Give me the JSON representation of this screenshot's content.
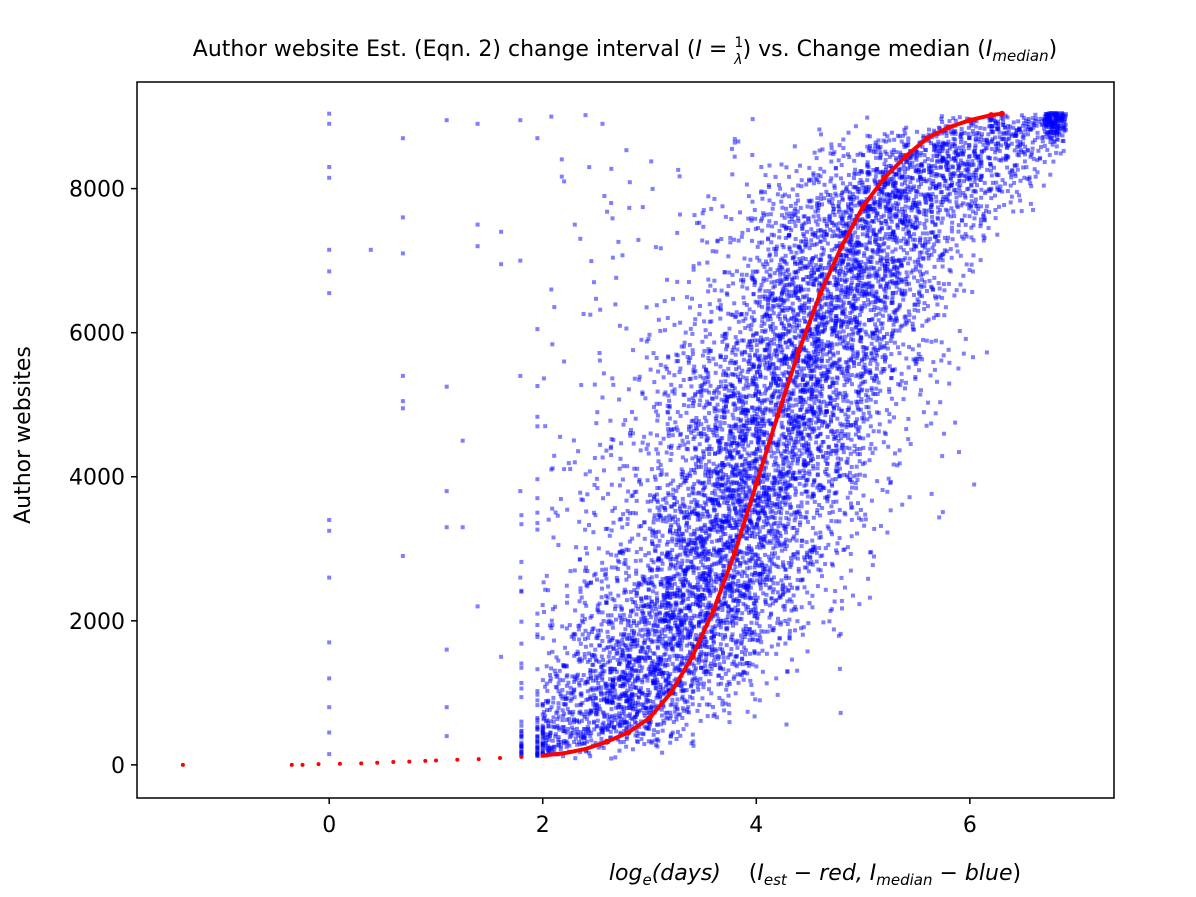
{
  "chart_data": {
    "type": "scatter",
    "title": "Author website Est. (Eqn. 2) change interval (I = 1/λ) vs. Change median (I_median)",
    "title_parts": {
      "prefix": "Author website Est. (Eqn. 2) change interval (",
      "I": "I",
      "eq": " = ",
      "frac_num": "1",
      "frac_den": "λ",
      "mid": ") vs. Change median (",
      "I2": "I",
      "median_sub": "median",
      "suffix": ")"
    },
    "xlabel_parts": {
      "log": "log",
      "e_sub": "e",
      "days": "(days)",
      "open": "(",
      "I1": "I",
      "est_sub": "est",
      "minus_red": " − red, ",
      "I2": "I",
      "median_sub": "median",
      "minus_blue": " − blue",
      "close": ")"
    },
    "ylabel": "Author websites",
    "xlim": [
      -1.8,
      7.35
    ],
    "ylim": [
      -460,
      9480
    ],
    "xticks": [
      0,
      2,
      4,
      6
    ],
    "yticks": [
      0,
      2000,
      4000,
      6000,
      8000
    ],
    "grid": false,
    "series": [
      {
        "color": "#0000ff",
        "marker": "square",
        "alpha": 0.5,
        "points": [
          [
            0.0,
            9040
          ],
          [
            0.0,
            8900
          ],
          [
            0.0,
            8300
          ],
          [
            0.0,
            8150
          ],
          [
            0.0,
            7150
          ],
          [
            0.0,
            6850
          ],
          [
            0.0,
            6550
          ],
          [
            0.0,
            3400
          ],
          [
            0.0,
            3250
          ],
          [
            0.0,
            2600
          ],
          [
            0.0,
            1700
          ],
          [
            0.0,
            1200
          ],
          [
            0.0,
            800
          ],
          [
            0.0,
            450
          ],
          [
            0.0,
            150
          ],
          [
            0.39,
            7150
          ],
          [
            0.69,
            8700
          ],
          [
            0.69,
            7600
          ],
          [
            0.69,
            7100
          ],
          [
            0.69,
            5400
          ],
          [
            0.69,
            5050
          ],
          [
            0.69,
            4950
          ],
          [
            0.69,
            2900
          ],
          [
            1.1,
            8950
          ],
          [
            1.1,
            5250
          ],
          [
            1.1,
            3800
          ],
          [
            1.1,
            3300
          ],
          [
            1.1,
            1600
          ],
          [
            1.1,
            800
          ],
          [
            1.1,
            400
          ],
          [
            1.25,
            4500
          ],
          [
            1.25,
            3300
          ],
          [
            1.39,
            8900
          ],
          [
            1.39,
            7500
          ],
          [
            1.39,
            7200
          ],
          [
            1.39,
            2200
          ],
          [
            1.61,
            7400
          ],
          [
            1.61,
            6950
          ],
          [
            1.61,
            1500
          ],
          [
            1.79,
            8950
          ],
          [
            1.79,
            7000
          ],
          [
            1.79,
            5400
          ],
          [
            1.79,
            3800
          ],
          [
            1.79,
            2600
          ],
          [
            1.95,
            8700
          ],
          [
            1.95,
            6050
          ],
          [
            1.95,
            4700
          ],
          [
            1.95,
            2100
          ],
          [
            2.08,
            9000
          ],
          [
            2.08,
            6600
          ],
          [
            2.08,
            4100
          ],
          [
            2.08,
            1900
          ],
          [
            2.2,
            8100
          ],
          [
            2.2,
            5600
          ],
          [
            2.3,
            7500
          ],
          [
            2.3,
            4200
          ],
          [
            2.3,
            2700
          ],
          [
            2.4,
            9020
          ],
          [
            2.48,
            6700
          ],
          [
            2.48,
            3500
          ],
          [
            2.56,
            8900
          ],
          [
            2.56,
            5100
          ],
          [
            2.64,
            7800
          ],
          [
            2.64,
            4300
          ]
        ],
        "band": {
          "comment": "dense cloud around the sigmoid, estimated from the plot",
          "count": 9000,
          "x_min": 1.8,
          "x_max": 6.9
        }
      },
      {
        "color": "#ff0000",
        "marker": "dot",
        "points": [
          [
            -1.37,
            0
          ],
          [
            -0.35,
            0
          ],
          [
            -0.25,
            0
          ],
          [
            -0.1,
            10
          ],
          [
            0.1,
            15
          ],
          [
            0.3,
            20
          ],
          [
            0.45,
            30
          ],
          [
            0.6,
            40
          ],
          [
            0.75,
            45
          ],
          [
            0.9,
            55
          ],
          [
            1.0,
            60
          ],
          [
            1.2,
            70
          ],
          [
            1.4,
            80
          ],
          [
            1.6,
            95
          ],
          [
            1.8,
            110
          ],
          [
            2.0,
            130
          ],
          [
            2.2,
            160
          ],
          [
            2.4,
            220
          ],
          [
            2.6,
            320
          ],
          [
            2.8,
            450
          ],
          [
            3.0,
            650
          ],
          [
            3.2,
            1000
          ],
          [
            3.4,
            1500
          ],
          [
            3.6,
            2150
          ],
          [
            3.8,
            2950
          ],
          [
            4.0,
            3900
          ],
          [
            4.2,
            4850
          ],
          [
            4.4,
            5750
          ],
          [
            4.6,
            6550
          ],
          [
            4.8,
            7200
          ],
          [
            5.0,
            7750
          ],
          [
            5.2,
            8150
          ],
          [
            5.4,
            8450
          ],
          [
            5.6,
            8700
          ],
          [
            5.8,
            8850
          ],
          [
            6.0,
            8950
          ],
          [
            6.2,
            9020
          ],
          [
            6.3,
            9040
          ]
        ]
      }
    ]
  }
}
